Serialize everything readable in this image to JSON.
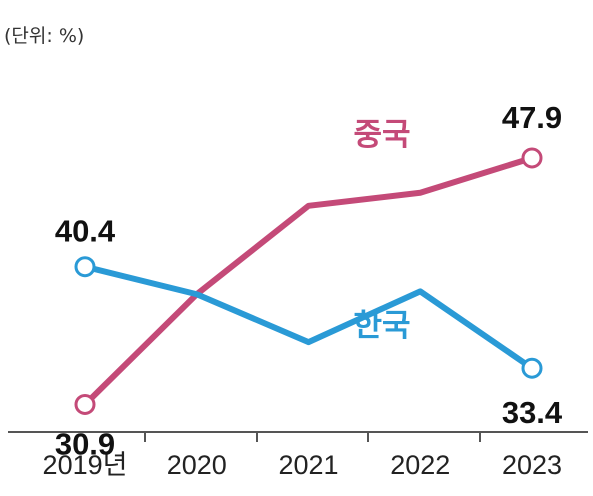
{
  "unit_label": "(단위: %)",
  "chart_data": {
    "type": "line",
    "categories": [
      "2019년",
      "2020",
      "2021",
      "2022",
      "2023"
    ],
    "ylim": [
      25,
      55
    ],
    "grid": false,
    "series": [
      {
        "name": "중국",
        "color": "#c44a78",
        "values": [
          30.9,
          38.5,
          44.6,
          45.5,
          47.9
        ],
        "labels": [
          "30.9",
          null,
          null,
          null,
          "47.9"
        ]
      },
      {
        "name": "한국",
        "color": "#2a9ad6",
        "values": [
          40.4,
          38.5,
          35.2,
          38.7,
          33.4
        ],
        "labels": [
          "40.4",
          null,
          null,
          null,
          "33.4"
        ]
      }
    ]
  }
}
